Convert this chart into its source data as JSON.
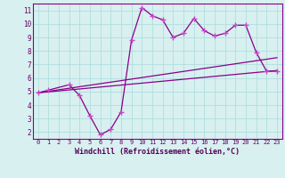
{
  "line1_x": [
    0,
    1,
    3,
    4,
    5,
    6,
    7,
    8,
    9,
    10,
    11,
    12,
    13,
    14,
    15,
    16,
    17,
    18,
    19,
    20,
    21,
    22,
    23
  ],
  "line1_y": [
    4.9,
    5.1,
    5.5,
    4.7,
    3.2,
    1.8,
    2.2,
    3.5,
    8.8,
    11.2,
    10.6,
    10.3,
    9.0,
    9.3,
    10.4,
    9.5,
    9.1,
    9.3,
    9.9,
    9.9,
    7.9,
    6.5,
    6.5
  ],
  "line2_x": [
    0,
    23
  ],
  "line2_y": [
    4.9,
    6.55
  ],
  "line3_x": [
    0,
    23
  ],
  "line3_y": [
    4.9,
    7.5
  ],
  "line_color": "#880088",
  "marker_color": "#cc44cc",
  "bg_color": "#d8f0f0",
  "grid_color": "#b0dede",
  "xlabel": "Windchill (Refroidissement éolien,°C)",
  "xlim": [
    -0.5,
    23.5
  ],
  "ylim": [
    1.5,
    11.5
  ],
  "yticks": [
    2,
    3,
    4,
    5,
    6,
    7,
    8,
    9,
    10,
    11
  ],
  "xticks": [
    0,
    1,
    2,
    3,
    4,
    5,
    6,
    7,
    8,
    9,
    10,
    11,
    12,
    13,
    14,
    15,
    16,
    17,
    18,
    19,
    20,
    21,
    22,
    23
  ],
  "tick_color": "#660066",
  "spine_color": "#880088",
  "xlabel_color": "#550055",
  "tick_fontsize": 5,
  "xlabel_fontsize": 6
}
